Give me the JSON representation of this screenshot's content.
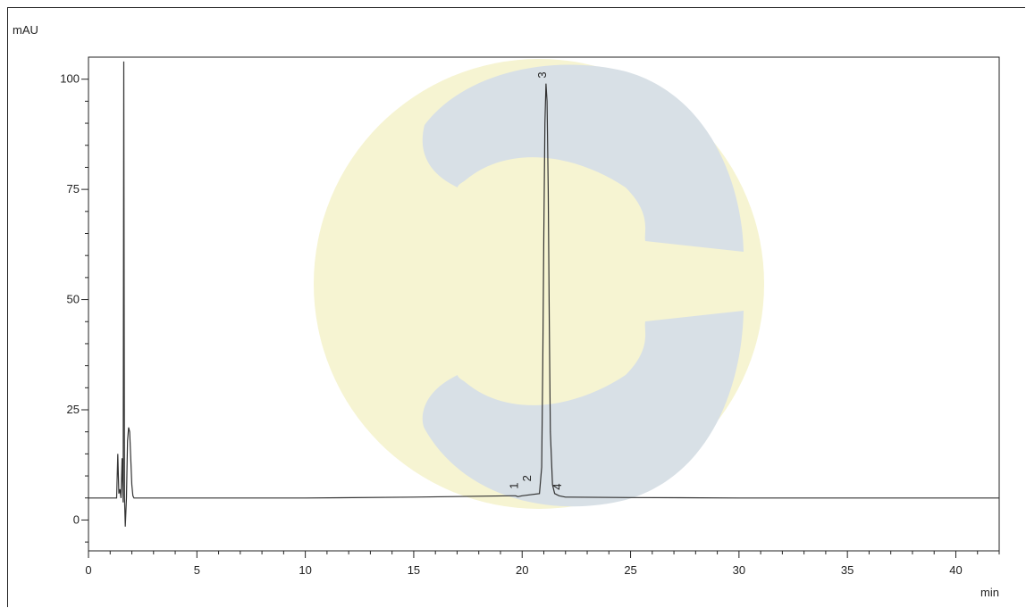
{
  "chart_data": {
    "type": "line",
    "title": "",
    "xlabel": "min",
    "ylabel": "mAU",
    "xlim": [
      0,
      42
    ],
    "ylim": [
      -7,
      105
    ],
    "xticks": [
      0,
      5,
      10,
      15,
      20,
      25,
      30,
      35,
      40
    ],
    "yticks": [
      0,
      25,
      50,
      75,
      100
    ],
    "grid": false,
    "baseline": 5,
    "series": [
      {
        "x": [
          0,
          1.3,
          1.35,
          1.4,
          1.45,
          1.5,
          1.55,
          1.6,
          1.63,
          1.66,
          1.7,
          1.75,
          1.8,
          1.85,
          1.9,
          1.95,
          2.0,
          2.05,
          2.1,
          2.15,
          2.2,
          2.3,
          2.5,
          5,
          10,
          15,
          19.5,
          19.7,
          19.8,
          20,
          20.8,
          20.9,
          20.95,
          21.0,
          21.05,
          21.1,
          21.15,
          21.2,
          21.25,
          21.3,
          21.4,
          21.5,
          21.7,
          22,
          25,
          30,
          35,
          40,
          42
        ],
        "y": [
          5,
          5,
          15,
          6,
          7,
          5,
          14,
          4,
          104,
          5,
          -1.5,
          5,
          18,
          21,
          20,
          14,
          8,
          5.5,
          5,
          5,
          5,
          5,
          5,
          5,
          5,
          5.2,
          5.5,
          5.5,
          5.3,
          5.5,
          6,
          12,
          35,
          65,
          90,
          99,
          95,
          75,
          45,
          20,
          8,
          6,
          5.5,
          5.2,
          5.1,
          5,
          5,
          5,
          5
        ]
      }
    ],
    "peak_labels": [
      {
        "label": "1",
        "x": 19.8,
        "y": 5.8
      },
      {
        "label": "2",
        "x": 20.4,
        "y": 7.5
      },
      {
        "label": "3",
        "x": 21.1,
        "y": 99
      },
      {
        "label": "4",
        "x": 21.8,
        "y": 5.6
      }
    ]
  },
  "colors": {
    "trace": "#333333",
    "axis": "#222222",
    "watermark_yellow": "#f6f4d2",
    "watermark_blue": "#d8e0e6"
  }
}
